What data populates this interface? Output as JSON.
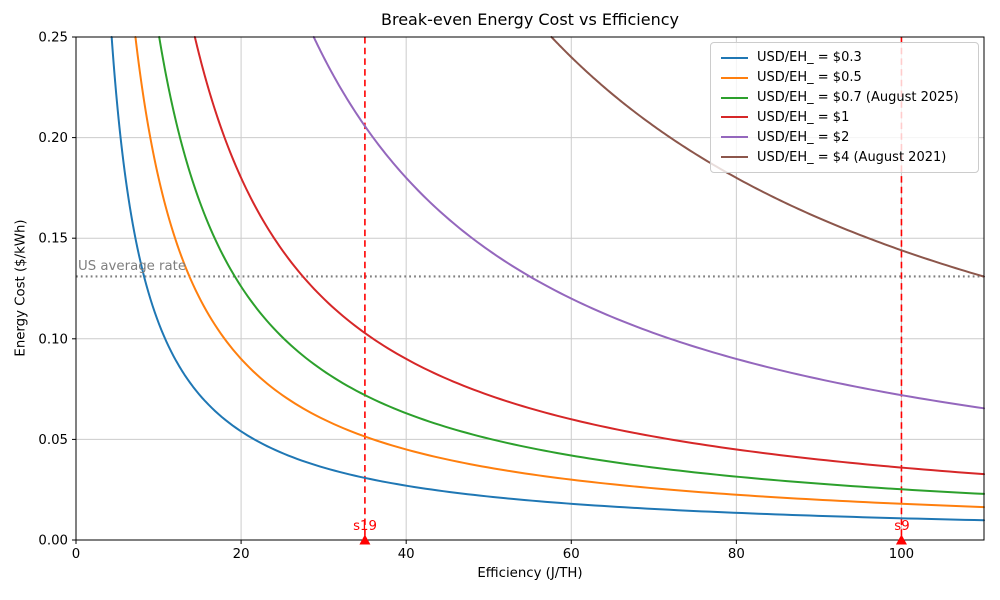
{
  "chart_data": {
    "type": "line",
    "title": "Break-even Energy Cost vs Efficiency",
    "xlabel": "Efficiency (J/TH)",
    "ylabel": "Energy Cost ($/kWh)",
    "xlim": [
      0,
      110
    ],
    "ylim": [
      0,
      0.25
    ],
    "xticks": [
      0,
      20,
      40,
      60,
      80,
      100
    ],
    "ytick_labels": [
      "0.00",
      "0.05",
      "0.10",
      "0.15",
      "0.20",
      "0.25"
    ],
    "ytick_values": [
      0,
      0.05,
      0.1,
      0.15,
      0.2,
      0.25
    ],
    "grid": true,
    "grid_color": "#cccccc",
    "legend_position": "upper right",
    "relation": "energy_cost = 3.6 * usd_per_eh / efficiency_j_per_th",
    "series": [
      {
        "name": "USD/EH_ = $0.3",
        "usd_per_eh": 0.3,
        "k": 1.08,
        "color": "#1f77b4",
        "x": [
          5,
          10,
          20,
          35,
          50,
          75,
          100,
          110
        ],
        "y": [
          0.216,
          0.108,
          0.054,
          0.0309,
          0.0216,
          0.0144,
          0.0108,
          0.0098
        ]
      },
      {
        "name": "USD/EH_ = $0.5",
        "usd_per_eh": 0.5,
        "k": 1.8,
        "color": "#ff7f0e",
        "x": [
          8,
          10,
          20,
          35,
          50,
          75,
          100,
          110
        ],
        "y": [
          0.225,
          0.18,
          0.09,
          0.0514,
          0.036,
          0.024,
          0.018,
          0.0164
        ]
      },
      {
        "name": "USD/EH_ = $0.7 (August 2025)",
        "usd_per_eh": 0.7,
        "k": 2.52,
        "color": "#2ca02c",
        "x": [
          11,
          15,
          20,
          35,
          50,
          75,
          100,
          110
        ],
        "y": [
          0.2291,
          0.168,
          0.126,
          0.072,
          0.0504,
          0.0336,
          0.0252,
          0.0229
        ]
      },
      {
        "name": "USD/EH_ = $1",
        "usd_per_eh": 1,
        "k": 3.6,
        "color": "#d62728",
        "x": [
          15,
          20,
          28,
          35,
          50,
          75,
          100,
          110
        ],
        "y": [
          0.24,
          0.18,
          0.1286,
          0.1029,
          0.072,
          0.048,
          0.036,
          0.0327
        ]
      },
      {
        "name": "USD/EH_ = $2",
        "usd_per_eh": 2,
        "k": 7.2,
        "color": "#9467bd",
        "x": [
          30,
          40,
          55,
          70,
          80,
          90,
          100,
          110
        ],
        "y": [
          0.24,
          0.18,
          0.1309,
          0.1029,
          0.09,
          0.08,
          0.072,
          0.0655
        ]
      },
      {
        "name": "USD/EH_ = $4 (August 2021)",
        "usd_per_eh": 4,
        "k": 14.4,
        "color": "#8c564b",
        "x": [
          60,
          70,
          80,
          90,
          100,
          105,
          110
        ],
        "y": [
          0.24,
          0.2057,
          0.18,
          0.16,
          0.144,
          0.1371,
          0.1309
        ]
      }
    ],
    "hline": {
      "value": 0.131,
      "label": "US average rate",
      "color": "#7f7f7f",
      "style": "dotted"
    },
    "vlines": [
      {
        "x": 35,
        "label": "s19",
        "color": "#ff0000",
        "style": "dashed",
        "marker": "triangle-up",
        "marker_color": "#ff0000"
      },
      {
        "x": 100,
        "label": "s9",
        "color": "#ff0000",
        "style": "dashed",
        "marker": "triangle-up",
        "marker_color": "#ff0000"
      }
    ]
  }
}
